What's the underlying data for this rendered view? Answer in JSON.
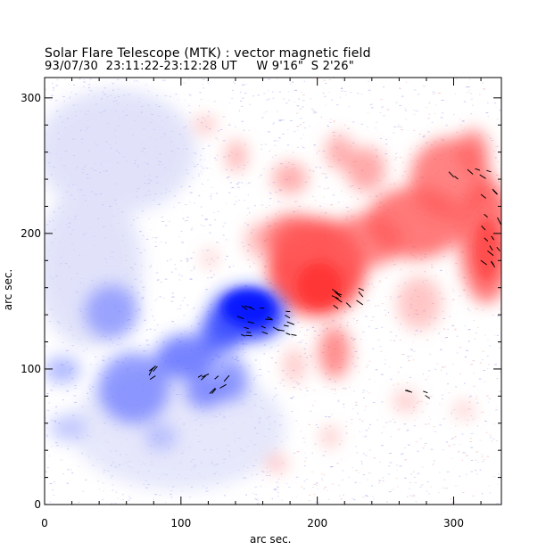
{
  "header": {
    "title": "Solar Flare Telescope (MTK) : vector magnetic field",
    "subtitle": "93/07/30  23:11:22-23:12:28 UT     W 9'16\"  S 2'26\""
  },
  "axes": {
    "xlabel": "arc sec.",
    "ylabel": "arc sec.",
    "xlim": [
      0,
      335
    ],
    "ylim": [
      0,
      315
    ],
    "xticks": [
      "0",
      "100",
      "200",
      "300"
    ],
    "yticks": [
      "0",
      "100",
      "200",
      "300"
    ]
  },
  "colors": {
    "positive_polarity": "#ff2a2a",
    "negative_polarity": "#2a3cff",
    "noise_blue": "#a6acf2",
    "vector": "#000000"
  },
  "icons": [
    "magnetogram-image",
    "vector-arrows"
  ]
}
